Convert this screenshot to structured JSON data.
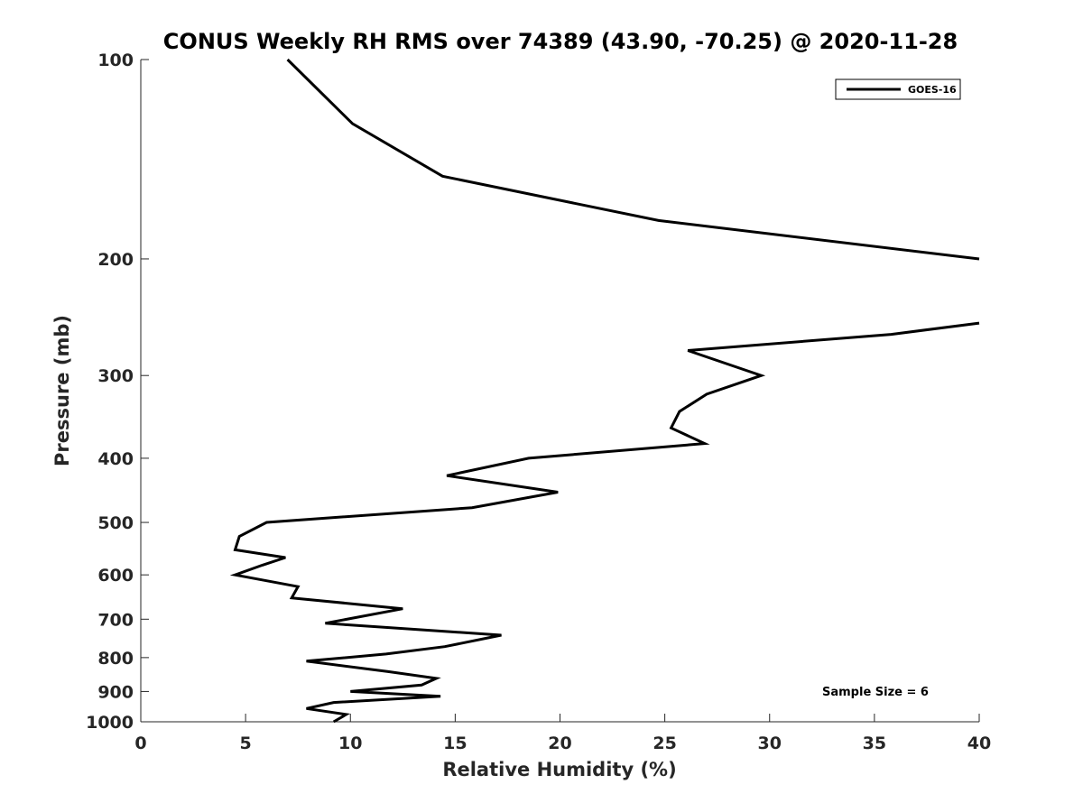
{
  "chart_data": {
    "type": "line",
    "title": "CONUS Weekly RH RMS over 74389 (43.90, -70.25) @ 2020-11-28",
    "xlabel": "Relative Humidity (%)",
    "ylabel": "Pressure (mb)",
    "xlim": [
      0,
      40
    ],
    "ylim": [
      100,
      1000
    ],
    "y_scale": "log",
    "y_direction": "reversed",
    "x_ticks": [
      0,
      5,
      10,
      15,
      20,
      25,
      30,
      35,
      40
    ],
    "y_ticks": [
      100,
      200,
      300,
      400,
      500,
      600,
      700,
      800,
      900,
      1000
    ],
    "grid": false,
    "legend": {
      "location": "top-right",
      "entries": [
        "GOES-16"
      ]
    },
    "annotation": "Sample Size = 6",
    "series": [
      {
        "name": "GOES-16",
        "color": "#000000",
        "segments": [
          [
            [
              7.0,
              100
            ],
            [
              10.1,
              125
            ],
            [
              14.4,
              150
            ],
            [
              24.7,
              175
            ],
            [
              40.0,
              200
            ]
          ],
          [
            [
              40.0,
              250
            ],
            [
              35.8,
              260
            ],
            [
              26.1,
              275
            ],
            [
              29.6,
              300
            ],
            [
              27.0,
              320
            ],
            [
              25.7,
              340
            ],
            [
              25.3,
              360
            ],
            [
              26.9,
              380
            ],
            [
              18.5,
              400
            ],
            [
              14.6,
              425
            ],
            [
              19.9,
              450
            ],
            [
              15.8,
              475
            ],
            [
              6.0,
              500
            ],
            [
              4.7,
              525
            ],
            [
              4.5,
              550
            ],
            [
              6.9,
              565
            ],
            [
              5.8,
              580
            ],
            [
              4.5,
              600
            ],
            [
              7.5,
              625
            ],
            [
              7.2,
              650
            ],
            [
              12.5,
              675
            ],
            [
              8.8,
              710
            ],
            [
              17.2,
              740
            ],
            [
              14.5,
              770
            ],
            [
              11.7,
              790
            ],
            [
              7.9,
              810
            ],
            [
              11.8,
              840
            ],
            [
              14.1,
              860
            ],
            [
              13.4,
              880
            ],
            [
              10.0,
              900
            ],
            [
              14.3,
              915
            ],
            [
              9.2,
              935
            ],
            [
              7.9,
              955
            ],
            [
              9.8,
              975
            ],
            [
              9.2,
              1000
            ]
          ]
        ]
      }
    ]
  }
}
